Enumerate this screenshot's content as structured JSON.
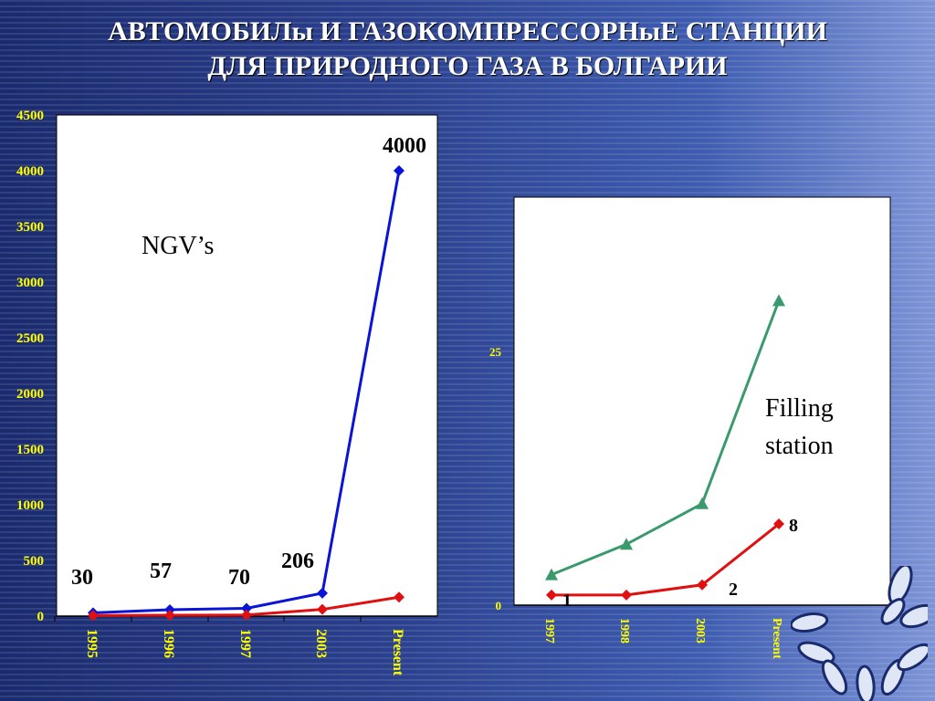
{
  "slide": {
    "title_line1": "АВТОМОБИЛы И ГАЗОКОМПРЕССОРНыЕ СТАНЦИИ",
    "title_line2": "ДЛЯ ПРИРОДНОГО ГАЗА В БОЛГАРИИ"
  },
  "colors": {
    "label_yellow": "#ffff00",
    "blue_series": "#0a14d6",
    "red_series": "#e01010",
    "green_series": "#3a9a6e"
  },
  "chart_data": [
    {
      "type": "line",
      "annotation": "NGV’s",
      "categories": [
        "1995",
        "1996",
        "1997",
        "2003",
        "Present"
      ],
      "y_ticks": [
        "0",
        "500",
        "1000",
        "1500",
        "2000",
        "2500",
        "3000",
        "3500",
        "4000",
        "4500"
      ],
      "ylim": [
        0,
        4500
      ],
      "series": [
        {
          "values": [
            30,
            57,
            70,
            206,
            4000
          ],
          "labels": [
            "30",
            "57",
            "70",
            "206",
            "4000"
          ],
          "color": "#0a14d6",
          "marker": "diamond"
        },
        {
          "values": [
            5,
            8,
            10,
            60,
            170
          ],
          "color": "#e01010",
          "marker": "diamond"
        }
      ]
    },
    {
      "type": "line",
      "annotation_line1": "Filling",
      "annotation_line2": "station",
      "categories": [
        "1997",
        "1998",
        "2003",
        "Present"
      ],
      "y_ticks": [
        "0",
        "25"
      ],
      "ylim": [
        0,
        40
      ],
      "series": [
        {
          "values": [
            3,
            6,
            10,
            30
          ],
          "color": "#3a9a6e",
          "marker": "triangle"
        },
        {
          "values": [
            1,
            1,
            2,
            8
          ],
          "labels": [
            "1",
            "",
            "2",
            "8"
          ],
          "color": "#e01010",
          "marker": "diamond"
        }
      ]
    }
  ]
}
